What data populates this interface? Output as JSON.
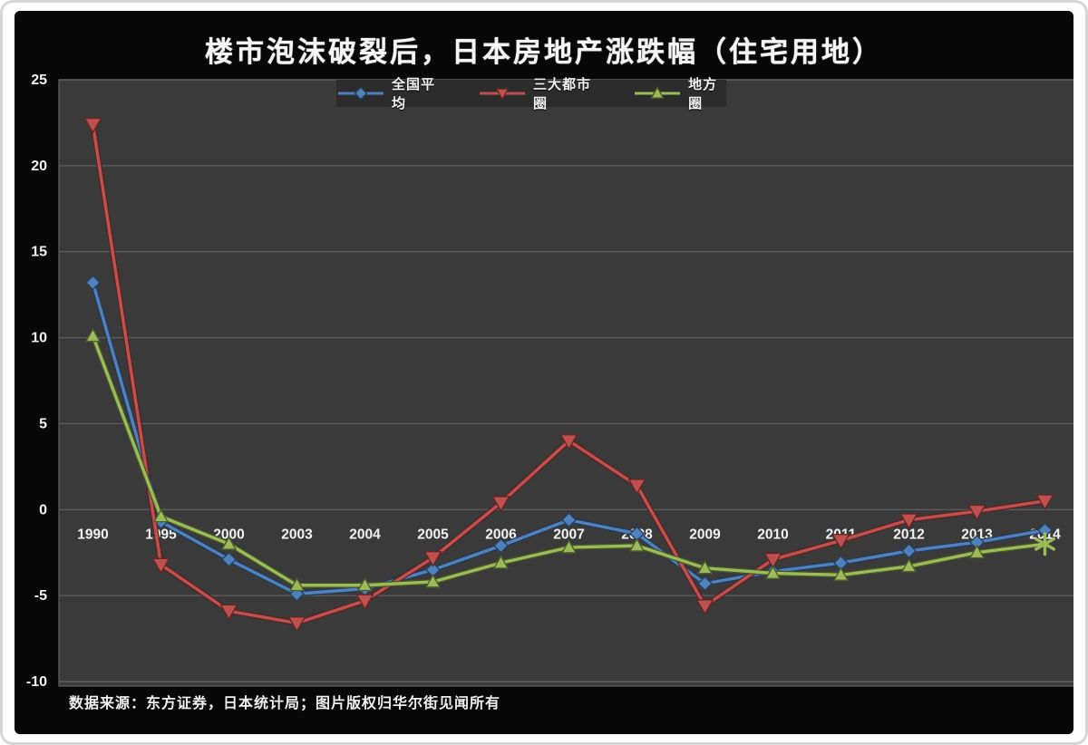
{
  "page": {
    "title": "楼市泡沫破裂后，日本房地产涨跌幅（住宅用地）",
    "source_note": "数据来源：东方证券，日本统计局；图片版权归华尔街见闻所有"
  },
  "colors": {
    "outer_background": "#080808",
    "frame": "#fdfdfd",
    "plot_background": "#3a3a3a",
    "plot_border": "#636363",
    "gridline": "#5c5c5c",
    "axis_text": "#f2f2f2",
    "series_national": "#4f81bd",
    "series_metro": "#c0504d",
    "series_regional": "#9bbb59"
  },
  "chart_data": {
    "type": "line",
    "title": "楼市泡沫破裂后，日本房地产涨跌幅（住宅用地）",
    "xlabel": "",
    "ylabel": "",
    "ylim": [
      -10,
      25
    ],
    "yticks": [
      25,
      20,
      15,
      10,
      5,
      0,
      -5,
      -10
    ],
    "grid": true,
    "legend_position": "top-center",
    "categories": [
      "1990",
      "1995",
      "2000",
      "2003",
      "2004",
      "2005",
      "2006",
      "2007",
      "2008",
      "2009",
      "2010",
      "2011",
      "2012",
      "2013",
      "2014"
    ],
    "series": [
      {
        "name": "全国平均",
        "color_key": "series_national",
        "marker": "diamond",
        "values": [
          13.2,
          -0.7,
          -2.9,
          -4.9,
          -4.6,
          -3.5,
          -2.1,
          -0.6,
          -1.4,
          -4.3,
          -3.6,
          -3.1,
          -2.4,
          -1.9,
          -1.2
        ]
      },
      {
        "name": "三大都市圈",
        "color_key": "series_metro",
        "marker": "triangle-down",
        "values": [
          22.4,
          -3.2,
          -5.9,
          -6.6,
          -5.3,
          -2.8,
          0.4,
          4.0,
          1.4,
          -5.6,
          -2.9,
          -1.8,
          -0.6,
          -0.1,
          0.5
        ]
      },
      {
        "name": "地方圈",
        "color_key": "series_regional",
        "marker": "triangle-up",
        "last_marker": "star",
        "values": [
          10.1,
          -0.4,
          -2.0,
          -4.4,
          -4.4,
          -4.2,
          -3.1,
          -2.2,
          -2.1,
          -3.4,
          -3.7,
          -3.8,
          -3.3,
          -2.5,
          -2.0
        ]
      }
    ]
  }
}
